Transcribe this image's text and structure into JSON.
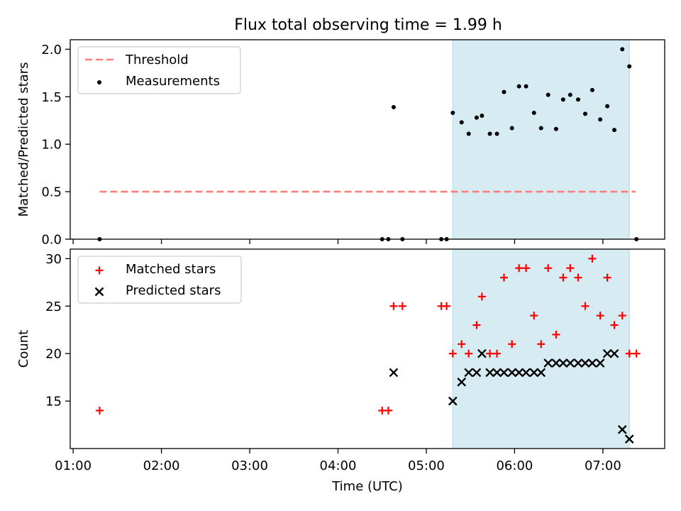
{
  "title": "Flux total observing time = 1.99 h",
  "colors": {
    "threshold": "#ff7f7f",
    "measurement": "#000000",
    "matched": "#ff0000",
    "predicted": "#000000",
    "shade": "#add8e6"
  },
  "chart_data": [
    {
      "type": "scatter",
      "panel": "top",
      "ylabel": "Matched/Predicted stars",
      "xlim": [
        0.967,
        7.7
      ],
      "ylim": [
        0,
        2.1
      ],
      "yticks": [
        0.0,
        0.5,
        1.0,
        1.5,
        2.0
      ],
      "ytick_labels": [
        "0.0",
        "0.5",
        "1.0",
        "1.5",
        "2.0"
      ],
      "shaded_span": [
        5.3,
        7.3
      ],
      "legend": {
        "placement": "upper-left",
        "entries": [
          "Threshold",
          "Measurements"
        ]
      },
      "threshold": {
        "name": "Threshold",
        "value": 0.5,
        "x_range": [
          1.3,
          7.37
        ],
        "style": "dashed"
      },
      "series": [
        {
          "name": "Measurements",
          "x": [
            1.3,
            4.5,
            4.57,
            4.63,
            4.73,
            5.17,
            5.23,
            5.3,
            5.4,
            5.48,
            5.57,
            5.63,
            5.72,
            5.8,
            5.88,
            5.97,
            6.05,
            6.13,
            6.22,
            6.3,
            6.38,
            6.47,
            6.55,
            6.63,
            6.72,
            6.8,
            6.88,
            6.97,
            7.05,
            7.13,
            7.22,
            7.3,
            7.38
          ],
          "y": [
            0.0,
            0.0,
            0.0,
            1.39,
            0.0,
            0.0,
            0.0,
            1.33,
            1.23,
            1.11,
            1.28,
            1.3,
            1.11,
            1.11,
            1.55,
            1.17,
            1.61,
            1.61,
            1.33,
            1.17,
            1.52,
            1.16,
            1.47,
            1.52,
            1.47,
            1.32,
            1.57,
            1.26,
            1.4,
            1.15,
            2.0,
            1.82,
            0.0
          ]
        }
      ]
    },
    {
      "type": "scatter",
      "panel": "bottom",
      "xlabel": "Time (UTC)",
      "ylabel": "Count",
      "xlim": [
        0.967,
        7.7
      ],
      "ylim": [
        10.0,
        31.0
      ],
      "xticks": [
        1,
        2,
        3,
        4,
        5,
        6,
        7
      ],
      "xtick_labels": [
        "01:00",
        "02:00",
        "03:00",
        "04:00",
        "05:00",
        "06:00",
        "07:00"
      ],
      "yticks": [
        15,
        20,
        25,
        30
      ],
      "ytick_labels": [
        "15",
        "20",
        "25",
        "30"
      ],
      "shaded_span": [
        5.3,
        7.3
      ],
      "legend": {
        "placement": "upper-left",
        "entries": [
          "Matched stars",
          "Predicted stars"
        ]
      },
      "series": [
        {
          "name": "Matched stars",
          "marker": "+",
          "x": [
            1.3,
            4.5,
            4.57,
            4.63,
            4.73,
            5.17,
            5.23,
            5.3,
            5.4,
            5.48,
            5.57,
            5.63,
            5.72,
            5.8,
            5.88,
            5.97,
            6.05,
            6.13,
            6.22,
            6.3,
            6.38,
            6.47,
            6.55,
            6.63,
            6.72,
            6.8,
            6.88,
            6.97,
            7.05,
            7.13,
            7.22,
            7.3,
            7.38
          ],
          "y": [
            14,
            14,
            14,
            25,
            25,
            25,
            25,
            20,
            21,
            20,
            23,
            26,
            20,
            20,
            28,
            21,
            29,
            29,
            24,
            21,
            29,
            22,
            28,
            29,
            28,
            25,
            30,
            24,
            28,
            23,
            24,
            20,
            20
          ]
        },
        {
          "name": "Predicted stars",
          "marker": "x",
          "x": [
            4.63,
            5.3,
            5.4,
            5.48,
            5.57,
            5.63,
            5.72,
            5.8,
            5.88,
            5.97,
            6.05,
            6.13,
            6.22,
            6.3,
            6.38,
            6.47,
            6.55,
            6.63,
            6.72,
            6.8,
            6.88,
            6.97,
            7.05,
            7.13,
            7.22,
            7.3
          ],
          "y": [
            18,
            15,
            17,
            18,
            18,
            20,
            18,
            18,
            18,
            18,
            18,
            18,
            18,
            18,
            19,
            19,
            19,
            19,
            19,
            19,
            19,
            19,
            20,
            20,
            12,
            11
          ]
        }
      ]
    }
  ]
}
